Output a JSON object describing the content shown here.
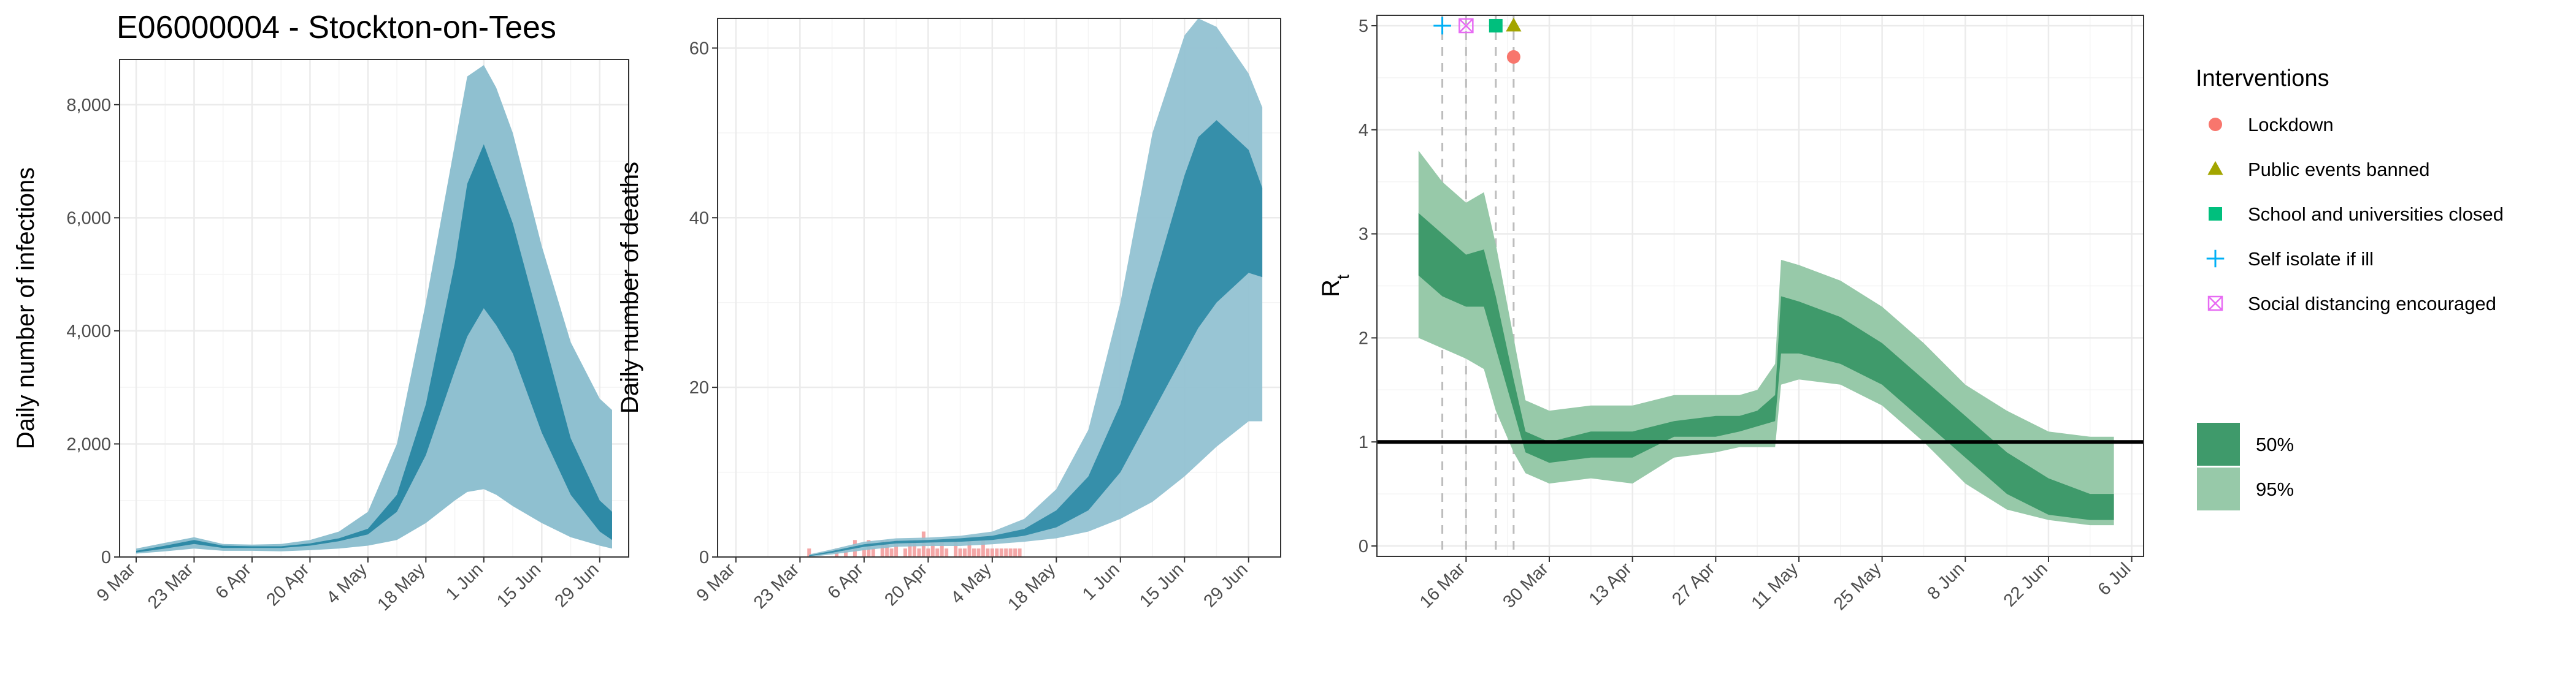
{
  "figure": {
    "title": "E06000004 - Stockton-on-Tees"
  },
  "colors": {
    "infection_50": "#2e8aa6",
    "infection_95": "#8fc0d0",
    "rt_50": "#3f9a6b",
    "rt_95": "#97c9a9",
    "deaths_bar": "#f4a7a7",
    "grid": "#ebebeb"
  },
  "legend": {
    "interventions_title": "Interventions",
    "interventions": [
      {
        "label": "Lockdown",
        "symbol": "circle",
        "color": "#f8766d"
      },
      {
        "label": "Public events banned",
        "symbol": "triangle",
        "color": "#a3a500"
      },
      {
        "label": "School and universities closed",
        "symbol": "square",
        "color": "#00bf7d"
      },
      {
        "label": "Self isolate if ill",
        "symbol": "plus",
        "color": "#00b0f6"
      },
      {
        "label": "Social distancing encouraged",
        "symbol": "boxcross",
        "color": "#e76bf3"
      }
    ],
    "intervals": [
      {
        "label": "50%",
        "color": "#3f9a6b"
      },
      {
        "label": "95%",
        "color": "#97c9a9"
      }
    ]
  },
  "chart_data": [
    {
      "type": "area",
      "title": "E06000004 - Stockton-on-Tees",
      "xlabel": "",
      "ylabel": "Daily number of infections",
      "xticks": [
        "9 Mar",
        "23 Mar",
        "6 Apr",
        "20 Apr",
        "4 May",
        "18 May",
        "1 Jun",
        "15 Jun",
        "29 Jun"
      ],
      "yticks": [
        0,
        2000,
        4000,
        6000,
        8000
      ],
      "ytick_labels": [
        "0",
        "2,000",
        "4,000",
        "6,000",
        "8,000"
      ],
      "xlim": [
        "2020-03-05",
        "2020-07-06"
      ],
      "ylim": [
        0,
        8800
      ],
      "grid": true,
      "x": [
        "2020-03-09",
        "2020-03-16",
        "2020-03-23",
        "2020-03-30",
        "2020-04-06",
        "2020-04-13",
        "2020-04-20",
        "2020-04-27",
        "2020-05-04",
        "2020-05-11",
        "2020-05-18",
        "2020-05-25",
        "2020-05-28",
        "2020-06-01",
        "2020-06-04",
        "2020-06-08",
        "2020-06-15",
        "2020-06-22",
        "2020-06-29",
        "2020-07-02"
      ],
      "series": [
        {
          "name": "95%",
          "lower": [
            60,
            100,
            150,
            110,
            110,
            100,
            120,
            150,
            200,
            300,
            600,
            1000,
            1150,
            1200,
            1100,
            900,
            600,
            350,
            200,
            150
          ],
          "upper": [
            150,
            250,
            350,
            230,
            220,
            230,
            300,
            450,
            800,
            2000,
            4500,
            7300,
            8500,
            8700,
            8300,
            7500,
            5500,
            3800,
            2800,
            2600
          ]
        },
        {
          "name": "50%",
          "lower": [
            80,
            150,
            230,
            160,
            160,
            160,
            200,
            280,
            400,
            800,
            1800,
            3300,
            3900,
            4400,
            4100,
            3600,
            2200,
            1100,
            450,
            300
          ],
          "upper": [
            110,
            200,
            300,
            200,
            190,
            190,
            240,
            330,
            500,
            1100,
            2700,
            5200,
            6600,
            7300,
            6700,
            5900,
            4000,
            2100,
            1000,
            800
          ]
        }
      ]
    },
    {
      "type": "area",
      "xlabel": "",
      "ylabel": "Daily number of deaths",
      "xticks": [
        "9 Mar",
        "23 Mar",
        "6 Apr",
        "20 Apr",
        "4 May",
        "18 May",
        "1 Jun",
        "15 Jun",
        "29 Jun"
      ],
      "yticks": [
        0,
        20,
        40,
        60
      ],
      "ylim": [
        0,
        63.5
      ],
      "grid": true,
      "x": [
        "2020-03-25",
        "2020-03-30",
        "2020-04-06",
        "2020-04-13",
        "2020-04-20",
        "2020-04-27",
        "2020-05-04",
        "2020-05-11",
        "2020-05-18",
        "2020-05-25",
        "2020-06-01",
        "2020-06-08",
        "2020-06-15",
        "2020-06-18",
        "2020-06-22",
        "2020-06-29",
        "2020-07-02"
      ],
      "series": [
        {
          "name": "95%",
          "lower": [
            0,
            0.3,
            0.8,
            1.2,
            1.3,
            1.3,
            1.5,
            1.8,
            2.2,
            3.0,
            4.5,
            6.5,
            9.5,
            11,
            13,
            16,
            16
          ],
          "upper": [
            0.3,
            0.9,
            1.8,
            2.2,
            2.3,
            2.5,
            3.0,
            4.5,
            8.0,
            15.0,
            30.0,
            50.0,
            61.5,
            63.5,
            62.5,
            57.0,
            53.0
          ]
        },
        {
          "name": "50%",
          "lower": [
            0.1,
            0.5,
            1.2,
            1.6,
            1.7,
            1.8,
            2.0,
            2.5,
            3.5,
            5.5,
            10.0,
            17.0,
            24.0,
            27.0,
            30.0,
            33.5,
            33.0
          ]
        },
        {
          "name": "50% upper",
          "upper": [
            0.2,
            0.7,
            1.5,
            1.9,
            2.0,
            2.2,
            2.5,
            3.3,
            5.5,
            9.5,
            18.0,
            32.0,
            45.0,
            49.5,
            51.5,
            48.0,
            43.5
          ]
        }
      ],
      "observed_deaths": [
        {
          "date": "2020-03-25",
          "value": 1
        },
        {
          "date": "2020-03-31",
          "value": 1
        },
        {
          "date": "2020-04-02",
          "value": 1
        },
        {
          "date": "2020-04-04",
          "value": 2
        },
        {
          "date": "2020-04-06",
          "value": 1
        },
        {
          "date": "2020-04-07",
          "value": 2
        },
        {
          "date": "2020-04-08",
          "value": 1
        },
        {
          "date": "2020-04-10",
          "value": 2
        },
        {
          "date": "2020-04-11",
          "value": 2
        },
        {
          "date": "2020-04-12",
          "value": 1
        },
        {
          "date": "2020-04-13",
          "value": 2
        },
        {
          "date": "2020-04-15",
          "value": 1
        },
        {
          "date": "2020-04-16",
          "value": 2
        },
        {
          "date": "2020-04-17",
          "value": 2
        },
        {
          "date": "2020-04-18",
          "value": 1
        },
        {
          "date": "2020-04-19",
          "value": 3
        },
        {
          "date": "2020-04-20",
          "value": 1
        },
        {
          "date": "2020-04-21",
          "value": 2
        },
        {
          "date": "2020-04-22",
          "value": 1
        },
        {
          "date": "2020-04-23",
          "value": 2
        },
        {
          "date": "2020-04-24",
          "value": 1
        },
        {
          "date": "2020-04-26",
          "value": 2
        },
        {
          "date": "2020-04-27",
          "value": 1
        },
        {
          "date": "2020-04-28",
          "value": 1
        },
        {
          "date": "2020-04-29",
          "value": 2
        },
        {
          "date": "2020-04-30",
          "value": 1
        },
        {
          "date": "2020-05-01",
          "value": 1
        },
        {
          "date": "2020-05-02",
          "value": 2
        },
        {
          "date": "2020-05-03",
          "value": 1
        },
        {
          "date": "2020-05-04",
          "value": 1
        },
        {
          "date": "2020-05-05",
          "value": 1
        },
        {
          "date": "2020-05-06",
          "value": 1
        },
        {
          "date": "2020-05-07",
          "value": 1
        },
        {
          "date": "2020-05-08",
          "value": 1
        },
        {
          "date": "2020-05-09",
          "value": 1
        },
        {
          "date": "2020-05-10",
          "value": 1
        }
      ]
    },
    {
      "type": "area",
      "xlabel": "",
      "ylabel": "Rt",
      "xticks": [
        "16 Mar",
        "30 Mar",
        "13 Apr",
        "27 Apr",
        "11 May",
        "25 May",
        "8 Jun",
        "22 Jun",
        "6 Jul"
      ],
      "yticks": [
        0,
        1,
        2,
        3,
        4,
        5
      ],
      "ylim": [
        -0.1,
        5.1
      ],
      "reference_line": 1,
      "grid": true,
      "x": [
        "2020-03-08",
        "2020-03-12",
        "2020-03-16",
        "2020-03-19",
        "2020-03-21",
        "2020-03-24",
        "2020-03-26",
        "2020-03-30",
        "2020-04-06",
        "2020-04-13",
        "2020-04-20",
        "2020-04-27",
        "2020-05-01",
        "2020-05-04",
        "2020-05-07",
        "2020-05-08",
        "2020-05-11",
        "2020-05-18",
        "2020-05-25",
        "2020-06-01",
        "2020-06-08",
        "2020-06-15",
        "2020-06-22",
        "2020-06-29",
        "2020-07-03"
      ],
      "series": [
        {
          "name": "95%",
          "lower": [
            2.0,
            1.9,
            1.8,
            1.7,
            1.3,
            0.9,
            0.7,
            0.6,
            0.65,
            0.6,
            0.85,
            0.9,
            0.95,
            0.95,
            0.95,
            1.55,
            1.6,
            1.55,
            1.35,
            1.0,
            0.6,
            0.35,
            0.25,
            0.2,
            0.2
          ],
          "upper": [
            3.8,
            3.5,
            3.3,
            3.4,
            2.9,
            2.0,
            1.4,
            1.3,
            1.35,
            1.35,
            1.45,
            1.45,
            1.45,
            1.5,
            1.75,
            2.75,
            2.7,
            2.55,
            2.3,
            1.95,
            1.55,
            1.3,
            1.1,
            1.05,
            1.05
          ]
        },
        {
          "name": "50%",
          "lower": [
            2.6,
            2.4,
            2.3,
            2.3,
            1.9,
            1.3,
            0.9,
            0.8,
            0.85,
            0.85,
            1.05,
            1.05,
            1.1,
            1.15,
            1.2,
            1.85,
            1.85,
            1.75,
            1.55,
            1.2,
            0.85,
            0.5,
            0.3,
            0.25,
            0.25
          ],
          "upper": [
            3.2,
            3.0,
            2.8,
            2.85,
            2.4,
            1.6,
            1.1,
            1.0,
            1.1,
            1.1,
            1.2,
            1.25,
            1.25,
            1.3,
            1.45,
            2.4,
            2.35,
            2.2,
            1.95,
            1.6,
            1.25,
            0.9,
            0.65,
            0.5,
            0.5
          ]
        }
      ],
      "interventions": [
        {
          "label": "Self isolate if ill",
          "date": "2020-03-12",
          "y": 5.0
        },
        {
          "label": "Social distancing encouraged",
          "date": "2020-03-16",
          "y": 5.0
        },
        {
          "label": "School and universities closed",
          "date": "2020-03-21",
          "y": 5.0
        },
        {
          "label": "Public events banned",
          "date": "2020-03-24",
          "y": 5.0
        },
        {
          "label": "Lockdown",
          "date": "2020-03-24",
          "y": 4.7
        }
      ]
    }
  ]
}
